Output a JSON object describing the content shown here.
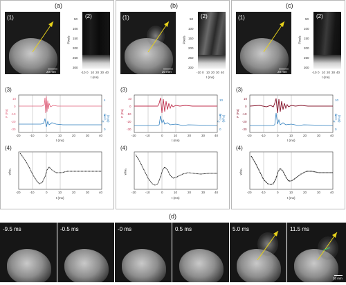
{
  "panels": [
    {
      "label": "(a)",
      "sub1": "(1)",
      "sub2": "(2)",
      "sub3": "(3)",
      "sub4": "(4)",
      "scale": "20 mm",
      "streak_ylabel": "Pixels",
      "streak_xlabel": "t (ms)",
      "streak_yticks": [
        "50",
        "100",
        "150",
        "200",
        "250",
        "300"
      ],
      "streak_xticks": [
        "-10",
        "0",
        "10",
        "20",
        "30",
        "40"
      ],
      "p_label": "P (Pa)",
      "pc_label": "P<sub>cavity</sub> (kPa)",
      "p_ticks": [
        "10",
        "0",
        "-10",
        "-20",
        "-30"
      ],
      "pc_ticks": [
        "4",
        "2",
        "0"
      ],
      "t_label": "t (ms)",
      "x_ticks": [
        "-20",
        "-10",
        "0",
        "10",
        "20",
        "30",
        "40"
      ],
      "y4_label": "w/w₀"
    },
    {
      "label": "(b)",
      "sub1": "(1)",
      "sub2": "(2)",
      "sub3": "(3)",
      "sub4": "(4)",
      "scale": "20 mm",
      "streak_ylabel": "Pixels",
      "streak_xlabel": "t (ms)",
      "streak_yticks": [
        "50",
        "100",
        "150",
        "200",
        "250",
        "300"
      ],
      "streak_xticks": [
        "-10",
        "0",
        "10",
        "20",
        "30",
        "40"
      ],
      "p_label": "P (Pa)",
      "pc_label": "P<sub>cavity</sub> (kPa)",
      "p_ticks": [
        "10",
        "0",
        "-10",
        "-20",
        "-30"
      ],
      "pc_ticks": [
        "10",
        "5",
        "0"
      ],
      "t_label": "t (ms)",
      "x_ticks": [
        "-20",
        "-10",
        "0",
        "10",
        "20",
        "30",
        "40"
      ],
      "y4_label": "w/w₀"
    },
    {
      "label": "(c)",
      "sub1": "(1)",
      "sub2": "(2)",
      "sub3": "(3)",
      "sub4": "(4)",
      "scale": "20 mm",
      "streak_ylabel": "Pixels",
      "streak_xlabel": "t (ms)",
      "streak_yticks": [
        "50",
        "100",
        "150",
        "200",
        "250",
        "300"
      ],
      "streak_xticks": [
        "-10",
        "0",
        "10",
        "20",
        "30",
        "40"
      ],
      "p_label": "P (Pa)",
      "pc_label": "P<sub>cavity</sub> (kPa)",
      "p_ticks": [
        "10",
        "0",
        "-10",
        "-20",
        "-30"
      ],
      "pc_ticks": [
        "10",
        "5",
        "0"
      ],
      "t_label": "t (ms)",
      "x_ticks": [
        "-20",
        "-10",
        "0",
        "10",
        "20",
        "30",
        "40"
      ],
      "y4_label": "w/w₀"
    }
  ],
  "sequence": {
    "label": "(d)",
    "scale": "20 mm",
    "frames": [
      "-9.5 ms",
      "-0.5 ms",
      "-0 ms",
      "0.5 ms",
      "5.0 ms",
      "11.5 ms"
    ]
  },
  "colors": {
    "pressure": "#e0607a",
    "cavity": "#2f7fbf",
    "arrow": "#e8d21a",
    "width": "#222222"
  }
}
